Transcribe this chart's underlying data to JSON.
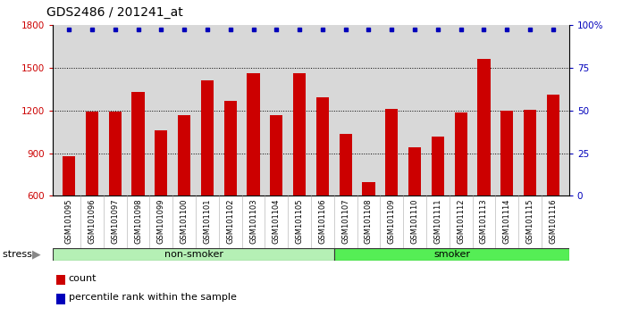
{
  "title": "GDS2486 / 201241_at",
  "categories": [
    "GSM101095",
    "GSM101096",
    "GSM101097",
    "GSM101098",
    "GSM101099",
    "GSM101100",
    "GSM101101",
    "GSM101102",
    "GSM101103",
    "GSM101104",
    "GSM101105",
    "GSM101106",
    "GSM101107",
    "GSM101108",
    "GSM101109",
    "GSM101110",
    "GSM101111",
    "GSM101112",
    "GSM101113",
    "GSM101114",
    "GSM101115",
    "GSM101116"
  ],
  "count_values": [
    880,
    1195,
    1190,
    1330,
    1060,
    1165,
    1415,
    1270,
    1460,
    1165,
    1460,
    1295,
    1035,
    700,
    1210,
    940,
    1020,
    1185,
    1565,
    1200,
    1205,
    1310
  ],
  "non_smoker_count": 12,
  "ylim_left": [
    600,
    1800
  ],
  "ylim_right": [
    0,
    100
  ],
  "yticks_left": [
    600,
    900,
    1200,
    1500,
    1800
  ],
  "yticks_right": [
    0,
    25,
    50,
    75,
    100
  ],
  "bar_color": "#cc0000",
  "percentile_color": "#0000bb",
  "non_smoker_color": "#b5f0b5",
  "smoker_color": "#55ee55",
  "stress_label": "stress",
  "non_smoker_label": "non-smoker",
  "smoker_label": "smoker",
  "legend_count_label": "count",
  "legend_percentile_label": "percentile rank within the sample",
  "plot_bg_color": "#d8d8d8",
  "title_fontsize": 10,
  "tick_fontsize": 7.5
}
